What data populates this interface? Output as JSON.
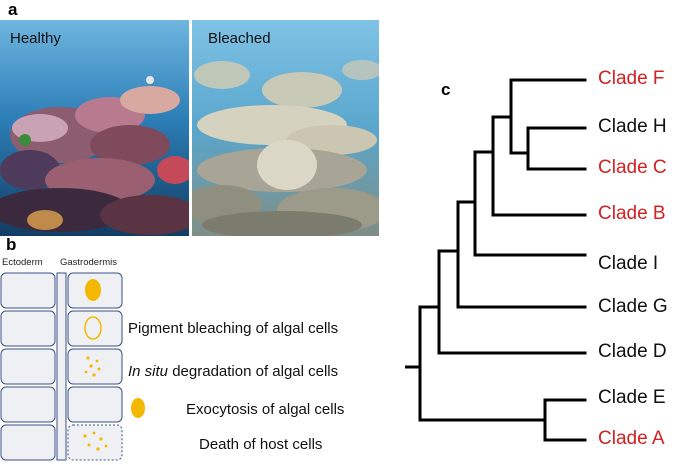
{
  "panels": {
    "a": {
      "letter": "a",
      "left_label": "Healthy",
      "right_label": "Bleached"
    },
    "b": {
      "letter": "b",
      "ectoderm_label": "Ectoderm",
      "gastrodermis_label": "Gastrodermis",
      "mechanisms": [
        {
          "italic": "",
          "text": "Pigment bleaching of algal cells"
        },
        {
          "italic": "In situ",
          "text": " degradation of algal cells"
        },
        {
          "italic": "",
          "text": "Exocytosis of algal cells"
        },
        {
          "italic": "",
          "text": "Death of host cells"
        }
      ]
    },
    "c": {
      "letter": "c",
      "clades": [
        {
          "label": "Clade F",
          "highlight": true
        },
        {
          "label": "Clade H",
          "highlight": false
        },
        {
          "label": "Clade C",
          "highlight": true
        },
        {
          "label": "Clade B",
          "highlight": true
        },
        {
          "label": "Clade I",
          "highlight": false
        },
        {
          "label": "Clade G",
          "highlight": false
        },
        {
          "label": "Clade D",
          "highlight": false
        },
        {
          "label": "Clade E",
          "highlight": false
        },
        {
          "label": "Clade A",
          "highlight": true
        }
      ]
    }
  },
  "colors": {
    "highlight": "#d42020",
    "normal": "#111111",
    "algal_cell": "#f5b800",
    "cell_fill": "#eef0f3",
    "cell_border": "#3a4f8a"
  }
}
